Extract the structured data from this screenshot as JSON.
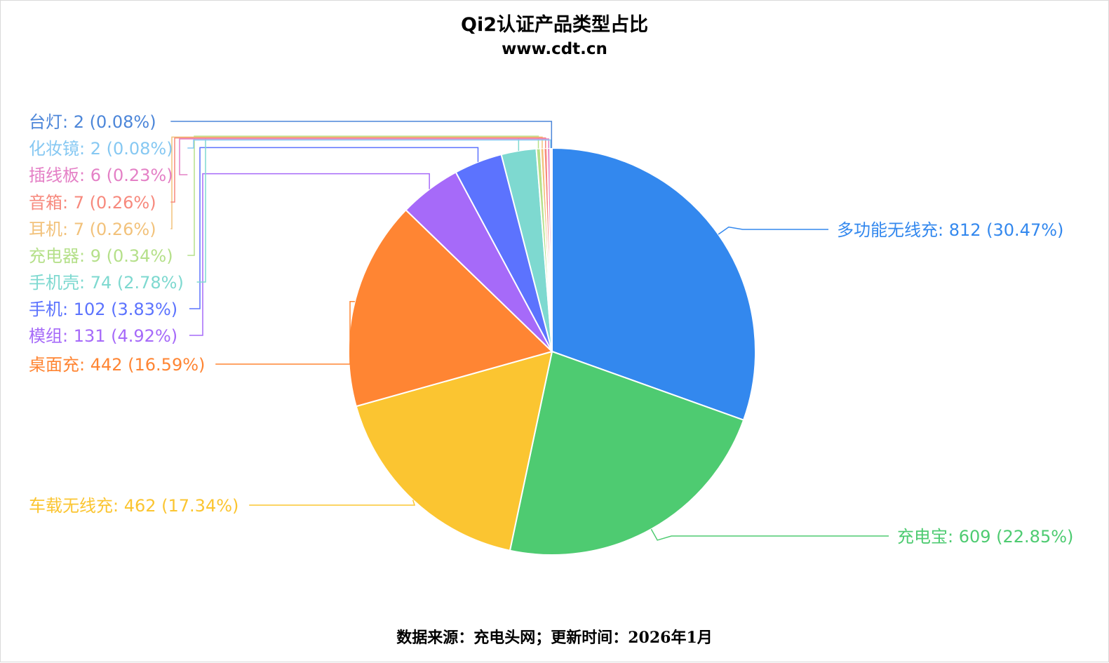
{
  "header": {
    "title": "Qi2认证产品类型占比",
    "subtitle": "www.cdt.cn"
  },
  "footer": {
    "text": "数据来源：充电头网；更新时间：2026年1月"
  },
  "chart_data": {
    "type": "pie",
    "title": "Qi2认证产品类型占比",
    "subtitle": "www.cdt.cn",
    "slices": [
      {
        "name": "多功能无线充",
        "value": 812,
        "percent": "30.47%",
        "color": "#3388EE",
        "label": "多功能无线充: 812 (30.47%)"
      },
      {
        "name": "充电宝",
        "value": 609,
        "percent": "22.85%",
        "color": "#4ECB71",
        "label": "充电宝: 609 (22.85%)"
      },
      {
        "name": "车载无线充",
        "value": 462,
        "percent": "17.34%",
        "color": "#FBC531",
        "label": "车载无线充: 462 (17.34%)"
      },
      {
        "name": "桌面充",
        "value": 442,
        "percent": "16.59%",
        "color": "#FF8533",
        "label": "桌面充: 442 (16.59%)"
      },
      {
        "name": "模组",
        "value": 131,
        "percent": "4.92%",
        "color": "#A66AF9",
        "label": "模组: 131 (4.92%)"
      },
      {
        "name": "手机",
        "value": 102,
        "percent": "3.83%",
        "color": "#5C73FE",
        "label": "手机: 102 (3.83%)"
      },
      {
        "name": "手机壳",
        "value": 74,
        "percent": "2.78%",
        "color": "#7ED9D0",
        "label": "手机壳: 74 (2.78%)"
      },
      {
        "name": "充电器",
        "value": 9,
        "percent": "0.34%",
        "color": "#B5E08A",
        "label": "充电器: 9 (0.34%)"
      },
      {
        "name": "耳机",
        "value": 7,
        "percent": "0.26%",
        "color": "#F2C27B",
        "label": "耳机: 7 (0.26%)"
      },
      {
        "name": "音箱",
        "value": 7,
        "percent": "0.26%",
        "color": "#F7897D",
        "label": "音箱: 7 (0.26%)"
      },
      {
        "name": "插线板",
        "value": 6,
        "percent": "0.23%",
        "color": "#E480C6",
        "label": "插线板: 6 (0.23%)"
      },
      {
        "name": "化妆镜",
        "value": 2,
        "percent": "0.08%",
        "color": "#86C8F2",
        "label": "化妆镜: 2 (0.08%)"
      },
      {
        "name": "台灯",
        "value": 2,
        "percent": "0.08%",
        "color": "#4C86D9",
        "label": "台灯: 2 (0.08%)"
      }
    ]
  }
}
